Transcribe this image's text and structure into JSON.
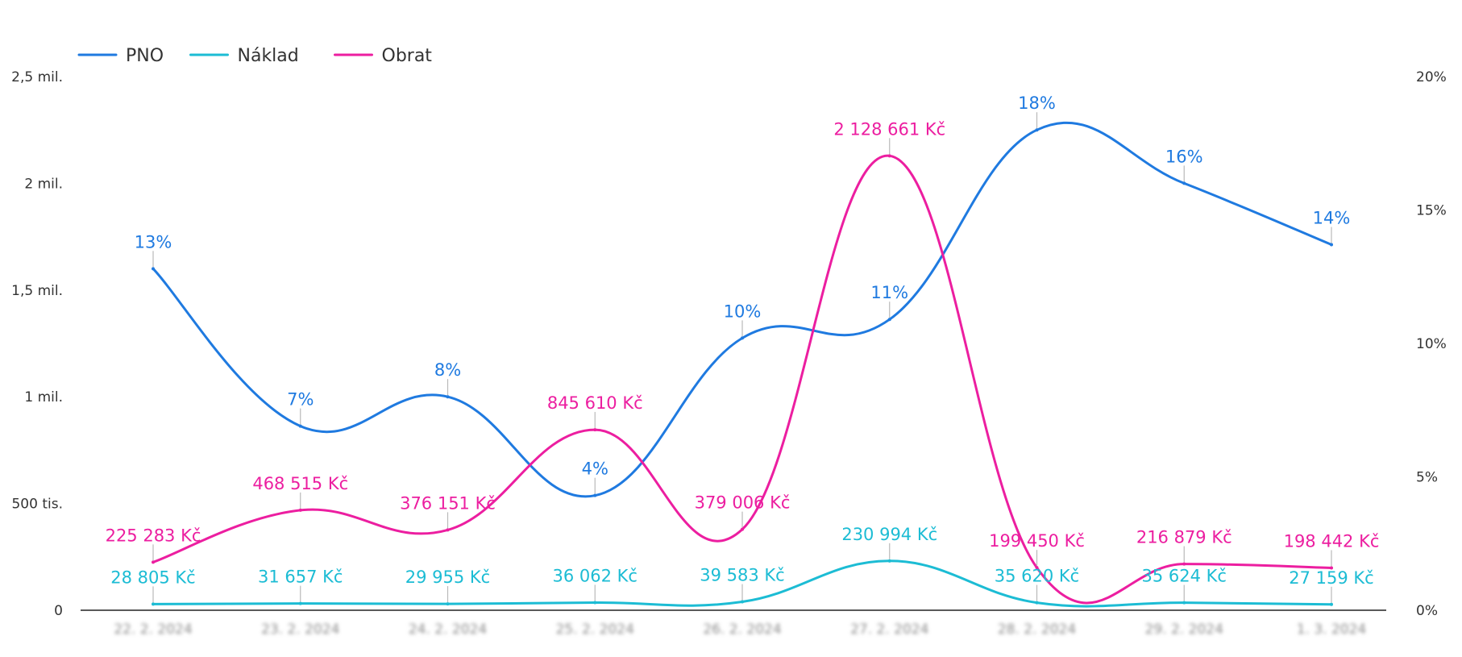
{
  "chart_data": {
    "type": "line",
    "categories": [
      "22. 2. 2024",
      "23. 2. 2024",
      "24. 2. 2024",
      "25. 2. 2024",
      "26. 2. 2024",
      "27. 2. 2024",
      "28. 2. 2024",
      "29. 2. 2024",
      "1. 3. 2024"
    ],
    "y_left": {
      "ticks": [
        0,
        500000,
        1000000,
        1500000,
        2000000,
        2500000
      ],
      "tick_labels": [
        "0",
        "500 tis.",
        "1 mil.",
        "1,5 mil.",
        "2 mil.",
        "2,5 mil."
      ],
      "ylim": [
        0,
        2500000
      ]
    },
    "y_right": {
      "ticks": [
        0,
        5,
        10,
        15,
        20
      ],
      "tick_labels": [
        "0%",
        "5%",
        "10%",
        "15%",
        "20%"
      ],
      "ylim": [
        0,
        20
      ]
    },
    "legend": {
      "placement": "top-left"
    },
    "grid": false,
    "series": [
      {
        "name": "PNO",
        "axis": "right",
        "color": "#1f7ae0",
        "values": [
          12.8,
          6.9,
          8.0,
          4.3,
          10.2,
          10.9,
          18.0,
          16.0,
          13.7
        ],
        "labels": [
          "13%",
          "7%",
          "8%",
          "4%",
          "10%",
          "11%",
          "18%",
          "16%",
          "14%"
        ]
      },
      {
        "name": "Náklad",
        "axis": "left",
        "color": "#1cbcd4",
        "values": [
          28805,
          31657,
          29955,
          36062,
          39583,
          230994,
          35620,
          35624,
          27159
        ],
        "labels": [
          "28 805 Kč",
          "31 657 Kč",
          "29 955 Kč",
          "36 062 Kč",
          "39 583 Kč",
          "230 994 Kč",
          "35 620 Kč",
          "35 624 Kč",
          "27 159 Kč"
        ]
      },
      {
        "name": "Obrat",
        "axis": "left",
        "color": "#ec1ea0",
        "values": [
          225283,
          468515,
          376151,
          845610,
          379006,
          2128661,
          199450,
          216879,
          198442
        ],
        "labels": [
          "225 283 Kč",
          "468 515 Kč",
          "376 151 Kč",
          "845 610 Kč",
          "379 006 Kč",
          "2 128 661 Kč",
          "199 450 Kč",
          "216 879 Kč",
          "198 442 Kč"
        ]
      }
    ]
  }
}
